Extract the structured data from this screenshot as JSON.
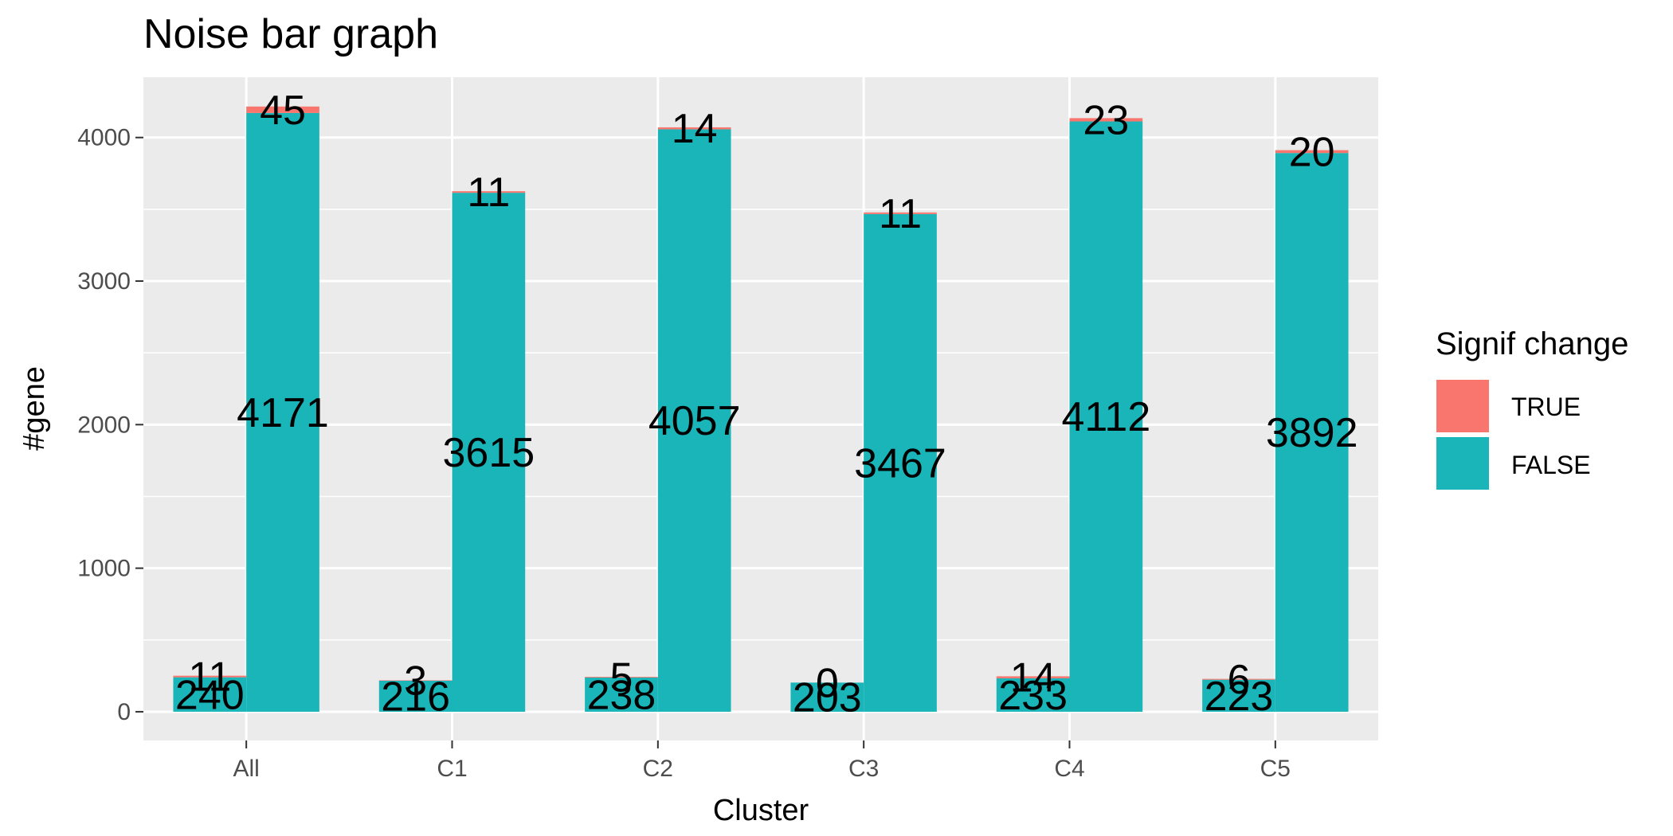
{
  "chart_data": {
    "type": "bar",
    "title": "Noise bar graph",
    "xlabel": "Cluster",
    "ylabel": "#gene",
    "categories": [
      "All",
      "C1",
      "C2",
      "C3",
      "C4",
      "C5"
    ],
    "ylim": [
      -200,
      4420
    ],
    "yticks": [
      0,
      1000,
      2000,
      3000,
      4000
    ],
    "grid": true,
    "stacked": true,
    "dodge_groups": [
      "left",
      "right"
    ],
    "colors": {
      "TRUE": "#F8766D",
      "FALSE": "#1AB5B8",
      "panel": "#EBEBEB",
      "grid": "#FFFFFF"
    },
    "series": [
      {
        "group": "left",
        "stack": "FALSE",
        "values": [
          240,
          216,
          238,
          203,
          233,
          223
        ]
      },
      {
        "group": "left",
        "stack": "TRUE",
        "values": [
          11,
          3,
          5,
          0,
          14,
          6
        ]
      },
      {
        "group": "right",
        "stack": "FALSE",
        "values": [
          4171,
          3615,
          4057,
          3467,
          4112,
          3892
        ]
      },
      {
        "group": "right",
        "stack": "TRUE",
        "values": [
          45,
          11,
          14,
          11,
          23,
          20
        ]
      }
    ],
    "legend": {
      "title": "Signif change",
      "placement": "right",
      "entries": [
        {
          "label": "TRUE",
          "color": "#F8766D"
        },
        {
          "label": "FALSE",
          "color": "#1AB5B8"
        }
      ]
    }
  }
}
